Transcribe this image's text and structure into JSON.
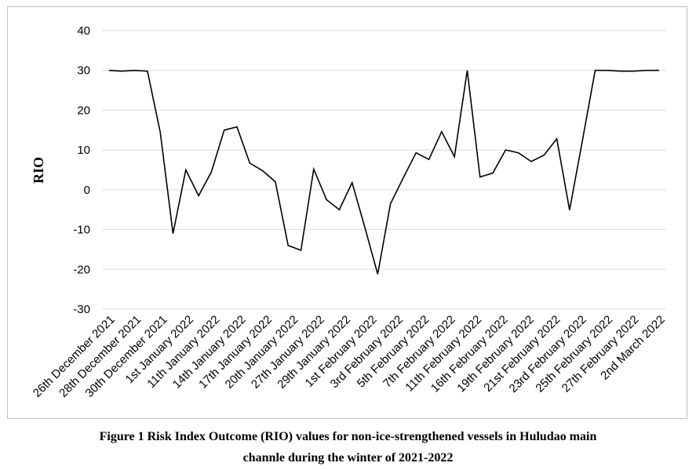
{
  "chart_data": {
    "type": "line",
    "ylabel": "RIO",
    "ylim": [
      -30,
      40
    ],
    "yticks": [
      40,
      30,
      20,
      10,
      0,
      -10,
      -20,
      -30
    ],
    "grid": true,
    "xtick_labels": [
      "26th December 2021",
      "28th December 2021",
      "30th December 2021",
      "1st January 2022",
      "11th January 2022",
      "14th January 2022",
      "17th January 2022",
      "20th January 2022",
      "27th January 2022",
      "29th January 2022",
      "1st February 2022",
      "3rd February 2022",
      "5th February 2022",
      "7th February 2022",
      "11th February 2022",
      "16th February 2022",
      "19th February 2022",
      "21st February 2022",
      "23rd February 2022",
      "25th February 2022",
      "27th February 2022",
      "2nd March 2022"
    ],
    "series": [
      {
        "values": [
          30,
          29.8,
          30,
          29.8,
          14.5,
          -11,
          5,
          -1.5,
          4.5,
          15,
          15.8,
          6.7,
          4.8,
          2,
          -14,
          -15.2,
          5.2,
          -2.5,
          -5,
          1.8,
          -9.5,
          -21.2,
          -3.5,
          3,
          9.3,
          7.6,
          14.6,
          8.3,
          30,
          3.2,
          4.2,
          10,
          9.3,
          7.1,
          8.7,
          12.8,
          -5.1,
          12.3,
          30,
          30,
          29.8,
          29.8,
          30,
          30
        ]
      }
    ]
  },
  "caption": {
    "line1": "Figure 1  Risk Index Outcome (RIO) values for non-ice-strengthened vessels in Huludao main",
    "line2": "channle during the winter of 2021-2022"
  }
}
